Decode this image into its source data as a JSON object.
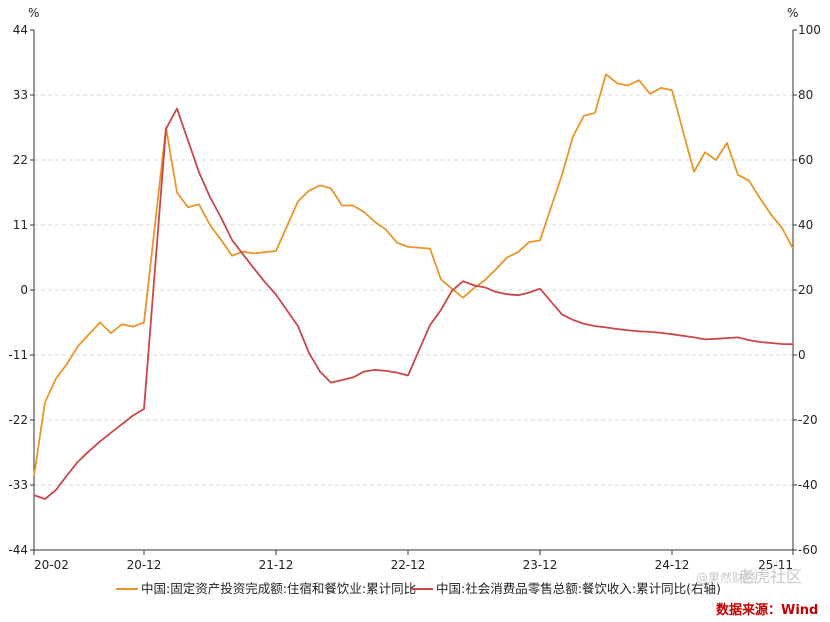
{
  "chart_data": {
    "type": "line",
    "x_ticks": [
      "20-02",
      "20-12",
      "21-12",
      "22-12",
      "23-12",
      "24-12",
      "25-11"
    ],
    "y_left": {
      "unit": "%",
      "range": [
        -44,
        44
      ],
      "ticks": [
        44,
        33,
        22,
        11,
        0,
        -11,
        -22,
        -33,
        -44
      ]
    },
    "y_right": {
      "unit": "%",
      "range": [
        -60,
        100
      ],
      "ticks": [
        100,
        80,
        60,
        40,
        20,
        0,
        -20,
        -40,
        -60
      ]
    },
    "grid": "horizontal-dashed",
    "legend_position": "bottom",
    "series": [
      {
        "name": "中国:固定资产投资完成额:住宿和餐饮业:累计同比",
        "axis": "left",
        "color": "#E8952A",
        "points": [
          [
            "2020-02",
            -31.5
          ],
          [
            "2020-03",
            -19.0
          ],
          [
            "2020-04",
            -15.0
          ],
          [
            "2020-05",
            -12.5
          ],
          [
            "2020-06",
            -9.5
          ],
          [
            "2020-07",
            -7.5
          ],
          [
            "2020-08",
            -5.5
          ],
          [
            "2020-09",
            -7.3
          ],
          [
            "2020-10",
            -5.8
          ],
          [
            "2020-11",
            -6.2
          ],
          [
            "2020-12",
            -5.5
          ],
          [
            "2021-02",
            27.5
          ],
          [
            "2021-03",
            16.5
          ],
          [
            "2021-04",
            14.0
          ],
          [
            "2021-05",
            14.5
          ],
          [
            "2021-06",
            11.0
          ],
          [
            "2021-07",
            8.5
          ],
          [
            "2021-08",
            5.8
          ],
          [
            "2021-09",
            6.5
          ],
          [
            "2021-10",
            6.2
          ],
          [
            "2021-12",
            6.6
          ],
          [
            "2022-02",
            15.0
          ],
          [
            "2022-03",
            16.8
          ],
          [
            "2022-04",
            17.7
          ],
          [
            "2022-05",
            17.2
          ],
          [
            "2022-06",
            14.3
          ],
          [
            "2022-07",
            14.3
          ],
          [
            "2022-08",
            13.2
          ],
          [
            "2022-09",
            11.5
          ],
          [
            "2022-10",
            10.2
          ],
          [
            "2022-11",
            8.0
          ],
          [
            "2022-12",
            7.3
          ],
          [
            "2023-02",
            7.0
          ],
          [
            "2023-03",
            1.8
          ],
          [
            "2023-04",
            0.2
          ],
          [
            "2023-05",
            -1.3
          ],
          [
            "2023-06",
            0.3
          ],
          [
            "2023-07",
            1.7
          ],
          [
            "2023-08",
            3.5
          ],
          [
            "2023-09",
            5.5
          ],
          [
            "2023-10",
            6.4
          ],
          [
            "2023-11",
            8.1
          ],
          [
            "2023-12",
            8.4
          ],
          [
            "2024-02",
            19.5
          ],
          [
            "2024-03",
            26.0
          ],
          [
            "2024-04",
            29.5
          ],
          [
            "2024-05",
            30.0
          ],
          [
            "2024-06",
            36.5
          ],
          [
            "2024-07",
            35.0
          ],
          [
            "2024-08",
            34.6
          ],
          [
            "2024-09",
            35.5
          ],
          [
            "2024-10",
            33.2
          ],
          [
            "2024-11",
            34.2
          ],
          [
            "2024-12",
            33.8
          ],
          [
            "2025-02",
            20.0
          ],
          [
            "2025-03",
            23.3
          ],
          [
            "2025-04",
            22.0
          ],
          [
            "2025-05",
            24.9
          ],
          [
            "2025-06",
            19.5
          ],
          [
            "2025-07",
            18.5
          ],
          [
            "2025-08",
            15.5
          ],
          [
            "2025-09",
            12.8
          ],
          [
            "2025-10",
            10.5
          ],
          [
            "2025-11",
            7.0
          ]
        ]
      },
      {
        "name": "中国:社会消费品零售总额:餐饮收入:累计同比(右轴)",
        "axis": "right",
        "color": "#C9474A",
        "points": [
          [
            "2020-02",
            -43.1
          ],
          [
            "2020-03",
            -44.3
          ],
          [
            "2020-04",
            -41.5
          ],
          [
            "2020-05",
            -37.0
          ],
          [
            "2020-06",
            -32.8
          ],
          [
            "2020-07",
            -29.6
          ],
          [
            "2020-08",
            -26.6
          ],
          [
            "2020-09",
            -23.9
          ],
          [
            "2020-10",
            -21.3
          ],
          [
            "2020-11",
            -18.6
          ],
          [
            "2020-12",
            -16.6
          ],
          [
            "2021-02",
            69.6
          ],
          [
            "2021-03",
            75.8
          ],
          [
            "2021-04",
            66.0
          ],
          [
            "2021-05",
            56.2
          ],
          [
            "2021-06",
            48.6
          ],
          [
            "2021-07",
            42.3
          ],
          [
            "2021-08",
            35.4
          ],
          [
            "2021-09",
            31.0
          ],
          [
            "2021-10",
            26.6
          ],
          [
            "2021-11",
            22.4
          ],
          [
            "2021-12",
            18.6
          ],
          [
            "2022-02",
            8.9
          ],
          [
            "2022-03",
            0.6
          ],
          [
            "2022-04",
            -5.1
          ],
          [
            "2022-05",
            -8.5
          ],
          [
            "2022-06",
            -7.7
          ],
          [
            "2022-07",
            -6.9
          ],
          [
            "2022-08",
            -5.1
          ],
          [
            "2022-09",
            -4.6
          ],
          [
            "2022-10",
            -4.9
          ],
          [
            "2022-11",
            -5.4
          ],
          [
            "2022-12",
            -6.3
          ],
          [
            "2023-02",
            9.2
          ],
          [
            "2023-03",
            13.9
          ],
          [
            "2023-04",
            19.8
          ],
          [
            "2023-05",
            22.7
          ],
          [
            "2023-06",
            21.4
          ],
          [
            "2023-07",
            20.8
          ],
          [
            "2023-08",
            19.4
          ],
          [
            "2023-09",
            18.7
          ],
          [
            "2023-10",
            18.4
          ],
          [
            "2023-11",
            19.2
          ],
          [
            "2023-12",
            20.4
          ],
          [
            "2024-02",
            12.5
          ],
          [
            "2024-03",
            10.8
          ],
          [
            "2024-04",
            9.6
          ],
          [
            "2024-05",
            8.9
          ],
          [
            "2024-06",
            8.5
          ],
          [
            "2024-07",
            8.0
          ],
          [
            "2024-08",
            7.6
          ],
          [
            "2024-09",
            7.3
          ],
          [
            "2024-10",
            7.1
          ],
          [
            "2024-11",
            6.8
          ],
          [
            "2024-12",
            6.4
          ],
          [
            "2025-02",
            5.4
          ],
          [
            "2025-03",
            4.8
          ],
          [
            "2025-04",
            5.0
          ],
          [
            "2025-05",
            5.2
          ],
          [
            "2025-06",
            5.4
          ],
          [
            "2025-07",
            4.6
          ],
          [
            "2025-08",
            4.0
          ],
          [
            "2025-09",
            3.7
          ],
          [
            "2025-10",
            3.4
          ],
          [
            "2025-11",
            3.3
          ]
        ]
      }
    ]
  },
  "watermark": {
    "handle": "@果然财经",
    "brand": "老虎社区"
  },
  "source": "数据来源：Wind"
}
